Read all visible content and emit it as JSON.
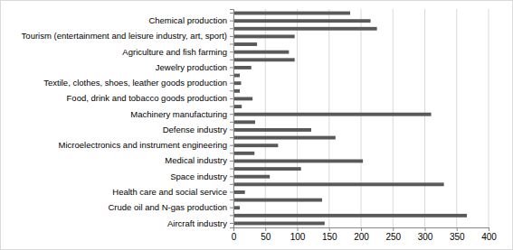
{
  "chart_data": {
    "type": "bar",
    "orientation": "horizontal",
    "color": "#595959",
    "grid": true,
    "categories": [
      null,
      "Chemical production",
      null,
      "Tourism (entertainment and leisure industry, art, sport)",
      null,
      "Agriculture and fish farming",
      null,
      "Jewelry production",
      null,
      "Textile, clothes, shoes, leather goods production",
      null,
      "Food, drink and tobacco goods production",
      null,
      "Machinery manufacturing",
      null,
      "Defense industry",
      null,
      "Microelectronics and instrument engineering",
      null,
      "Medical industry",
      null,
      "Space industry",
      null,
      "Health care and social service",
      null,
      "Crude oil and N-gas production",
      null,
      "Aircraft industry"
    ],
    "values": [
      183,
      215,
      225,
      96,
      37,
      87,
      96,
      28,
      10,
      12,
      10,
      30,
      13,
      310,
      34,
      122,
      160,
      70,
      33,
      203,
      106,
      57,
      330,
      18,
      139,
      10,
      366,
      143
    ],
    "xlim": [
      0,
      400
    ],
    "xticks": [
      0,
      50,
      100,
      150,
      200,
      250,
      300,
      350,
      400
    ]
  }
}
